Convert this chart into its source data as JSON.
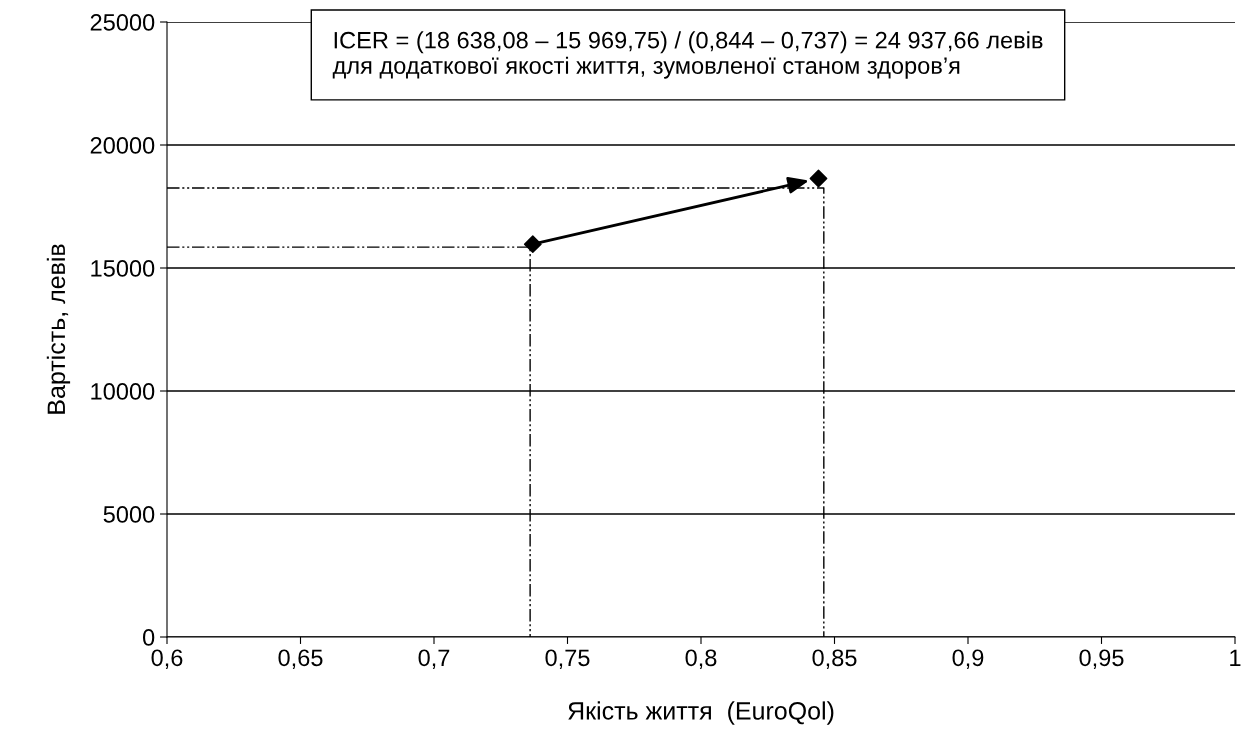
{
  "chart_data": {
    "type": "scatter",
    "xlabel": "Якість життя  (EuroQol)",
    "ylabel": "Вартість, левів",
    "annotations": [
      "ICER = (18 638,08 – 15 969,75) / (0,844 – 0,737) = 24 937,66 левів\nдля додаткової якості життя, зумовленої станом здоров’я"
    ],
    "series": [
      {
        "color": "#000000",
        "marker": "diamond",
        "x": [
          0.737,
          0.844
        ],
        "values": [
          15970,
          18640
        ]
      },
      {
        "type": "line",
        "color": "#000000",
        "line_style": "dashed",
        "marker": "none",
        "x": [
          0.6,
          0.736,
          0.736
        ],
        "values": [
          15850,
          15850,
          0
        ]
      },
      {
        "type": "line",
        "color": "#000000",
        "line_style": "dashed",
        "marker": "none",
        "x": [
          0.6,
          0.846,
          0.846
        ],
        "values": [
          18250,
          18250,
          0
        ]
      }
    ],
    "xlim": [
      0.6,
      1
    ],
    "ylim": [
      0,
      25000
    ],
    "xticks": [
      {
        "value": 0.6,
        "label": "0,6"
      },
      {
        "value": 0.65,
        "label": "0,65"
      },
      {
        "value": 0.7,
        "label": "0,7"
      },
      {
        "value": 0.75,
        "label": "0,75"
      },
      {
        "value": 0.8,
        "label": "0,8"
      },
      {
        "value": 0.85,
        "label": "0,85"
      },
      {
        "value": 0.9,
        "label": "0,9"
      },
      {
        "value": 0.95,
        "label": "0,95"
      },
      {
        "value": 1,
        "label": "1"
      }
    ],
    "yticks": [
      0,
      5000,
      10000,
      15000,
      20000,
      25000
    ],
    "grid": "y",
    "legend": false
  }
}
